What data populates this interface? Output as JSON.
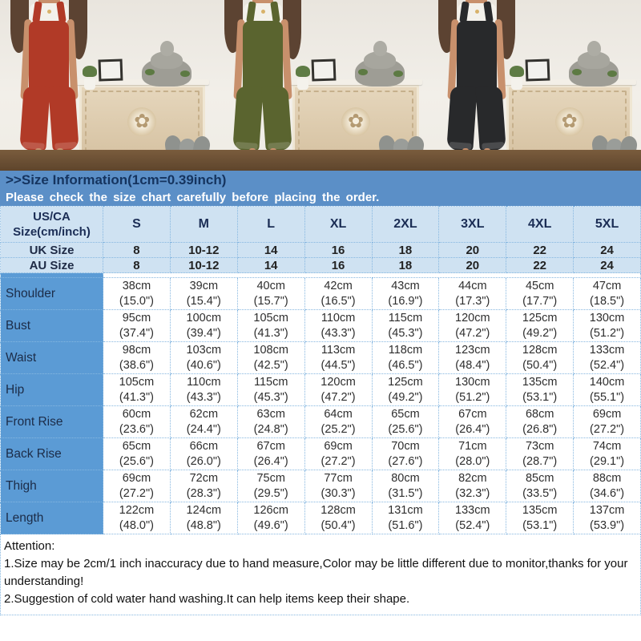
{
  "photos": {
    "panels": [
      {
        "name": "photo-rust-red-jumpsuit",
        "suit_color": "#b13a27"
      },
      {
        "name": "photo-olive-green-jumpsuit",
        "suit_color": "#5a642f"
      },
      {
        "name": "photo-black-jumpsuit",
        "suit_color": "#28292b"
      }
    ]
  },
  "banner": {
    "title": ">>Size Information(1cm=0.39inch)",
    "subtitle": "Please check the size chart carefully before placing the order."
  },
  "table": {
    "corner": [
      "US/CA",
      "Size(cm/inch)"
    ],
    "sizes": [
      "S",
      "M",
      "L",
      "XL",
      "2XL",
      "3XL",
      "4XL",
      "5XL"
    ],
    "region_rows": [
      {
        "label": "UK Size",
        "values": [
          "8",
          "10-12",
          "14",
          "16",
          "18",
          "20",
          "22",
          "24"
        ]
      },
      {
        "label": "AU Size",
        "values": [
          "8",
          "10-12",
          "14",
          "16",
          "18",
          "20",
          "22",
          "24"
        ]
      }
    ],
    "rows": [
      {
        "label": "Shoulder",
        "cm": [
          "38cm",
          "39cm",
          "40cm",
          "42cm",
          "43cm",
          "44cm",
          "45cm",
          "47cm"
        ],
        "in": [
          "(15.0\")",
          "(15.4\")",
          "(15.7\")",
          "(16.5\")",
          "(16.9\")",
          "(17.3\")",
          "(17.7\")",
          "(18.5\")"
        ]
      },
      {
        "label": "Bust",
        "cm": [
          "95cm",
          "100cm",
          "105cm",
          "110cm",
          "115cm",
          "120cm",
          "125cm",
          "130cm"
        ],
        "in": [
          "(37.4\")",
          "(39.4\")",
          "(41.3\")",
          "(43.3\")",
          "(45.3\")",
          "(47.2\")",
          "(49.2\")",
          "(51.2\")"
        ]
      },
      {
        "label": "Waist",
        "cm": [
          "98cm",
          "103cm",
          "108cm",
          "113cm",
          "118cm",
          "123cm",
          "128cm",
          "133cm"
        ],
        "in": [
          "(38.6\")",
          "(40.6\")",
          "(42.5\")",
          "(44.5\")",
          "(46.5\")",
          "(48.4\")",
          "(50.4\")",
          "(52.4\")"
        ]
      },
      {
        "label": "Hip",
        "cm": [
          "105cm",
          "110cm",
          "115cm",
          "120cm",
          "125cm",
          "130cm",
          "135cm",
          "140cm"
        ],
        "in": [
          "(41.3\")",
          "(43.3\")",
          "(45.3\")",
          "(47.2\")",
          "(49.2\")",
          "(51.2\")",
          "(53.1\")",
          "(55.1\")"
        ]
      },
      {
        "label": "Front Rise",
        "cm": [
          "60cm",
          "62cm",
          "63cm",
          "64cm",
          "65cm",
          "67cm",
          "68cm",
          "69cm"
        ],
        "in": [
          "(23.6\")",
          "(24.4\")",
          "(24.8\")",
          "(25.2\")",
          "(25.6\")",
          "(26.4\")",
          "(26.8\")",
          "(27.2\")"
        ]
      },
      {
        "label": "Back Rise",
        "cm": [
          "65cm",
          "66cm",
          "67cm",
          "69cm",
          "70cm",
          "71cm",
          "73cm",
          "74cm"
        ],
        "in": [
          "(25.6\")",
          "(26.0\")",
          "(26.4\")",
          "(27.2\")",
          "(27.6\")",
          "(28.0\")",
          "(28.7\")",
          "(29.1\")"
        ]
      },
      {
        "label": "Thigh",
        "cm": [
          "69cm",
          "72cm",
          "75cm",
          "77cm",
          "80cm",
          "82cm",
          "85cm",
          "88cm"
        ],
        "in": [
          "(27.2\")",
          "(28.3\")",
          "(29.5\")",
          "(30.3\")",
          "(31.5\")",
          "(32.3\")",
          "(33.5\")",
          "(34.6\")"
        ]
      },
      {
        "label": "Length",
        "cm": [
          "122cm",
          "124cm",
          "126cm",
          "128cm",
          "131cm",
          "133cm",
          "135cm",
          "137cm"
        ],
        "in": [
          "(48.0\")",
          "(48.8\")",
          "(49.6\")",
          "(50.4\")",
          "(51.6\")",
          "(52.4\")",
          "(53.1\")",
          "(53.9\")"
        ]
      }
    ]
  },
  "attention": {
    "heading": "Attention:",
    "lines": [
      "1.Size may be 2cm/1 inch inaccuracy due to hand measure,Color may be little different due to monitor,thanks for your understanding!",
      "2.Suggestion of cold water hand washing.It can help items keep their shape."
    ]
  },
  "colors": {
    "banner_bg": "#5b8fc7",
    "table_header_bg": "#cfe2f2",
    "label_column_bg": "#5b9bd5",
    "cell_border": "#86b7e0",
    "title_text": "#15345f"
  }
}
